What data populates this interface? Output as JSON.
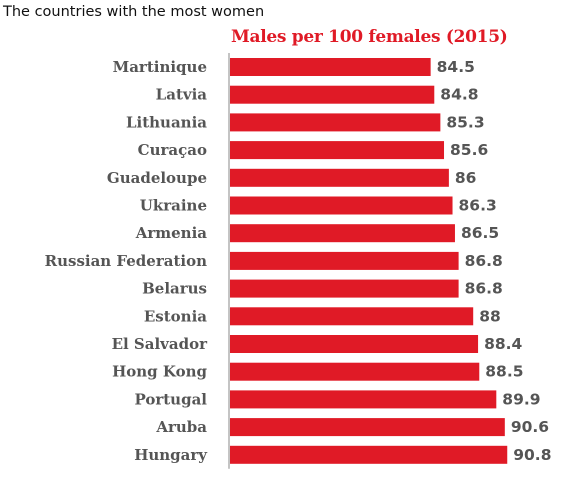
{
  "chart_data": {
    "type": "bar",
    "orientation": "horizontal",
    "title": "The countries with the most women",
    "subtitle": "Males per 100 females (2015)",
    "categories": [
      "Martinique",
      "Latvia",
      "Lithuania",
      "Curaçao",
      "Guadeloupe",
      "Ukraine",
      "Armenia",
      "Russian Federation",
      "Belarus",
      "Estonia",
      "El Salvador",
      "Hong Kong",
      "Portugal",
      "Aruba",
      "Hungary"
    ],
    "values": [
      84.5,
      84.8,
      85.3,
      85.6,
      86,
      86.3,
      86.5,
      86.8,
      86.8,
      88,
      88.4,
      88.5,
      89.9,
      90.6,
      90.8
    ],
    "value_labels": [
      "84.5",
      "84.8",
      "85.3",
      "85.6",
      "86",
      "86.3",
      "86.5",
      "86.8",
      "86.8",
      "88",
      "88.4",
      "88.5",
      "89.9",
      "90.6",
      "90.8"
    ],
    "xlim": [
      68,
      100
    ],
    "grid": false,
    "bar_color": "#e01a26",
    "text_color": "#555555",
    "accent_color": "#e01a26"
  }
}
